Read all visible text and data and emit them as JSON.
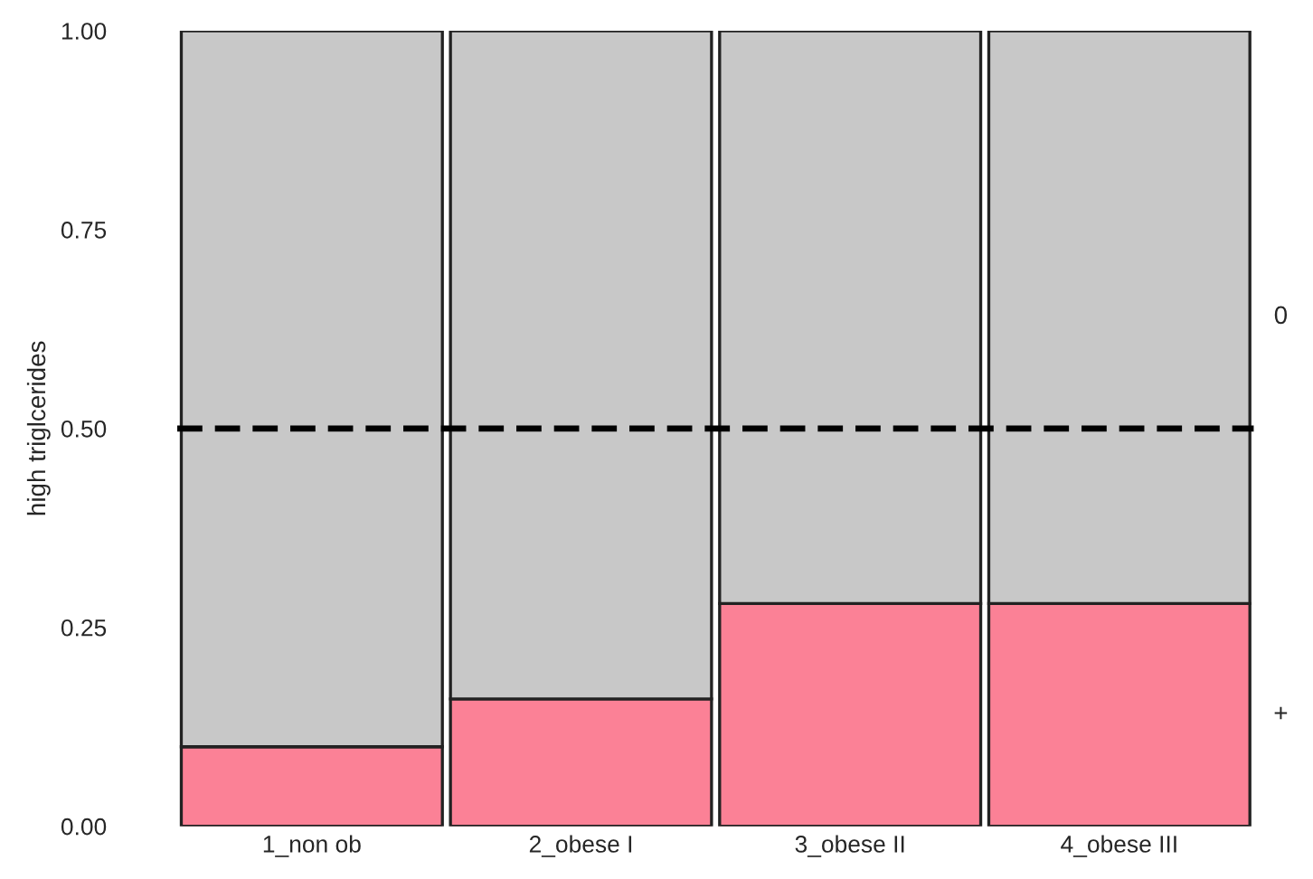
{
  "chart_data": {
    "type": "bar",
    "stacked": true,
    "ylabel": "high triglcerides",
    "categories": [
      "1_non ob",
      "2_obese I",
      "3_obese II",
      "4_obese III"
    ],
    "series": [
      {
        "name": "+",
        "color": "#fb8196",
        "values": [
          0.1,
          0.16,
          0.28,
          0.28
        ]
      },
      {
        "name": "0",
        "color": "#c8c8c8",
        "values": [
          0.9,
          0.84,
          0.72,
          0.72
        ]
      }
    ],
    "ylim": [
      0,
      1
    ],
    "yticks": [
      {
        "value": 0,
        "label": "0.00"
      },
      {
        "value": 0.25,
        "label": "0.25"
      },
      {
        "value": 0.5,
        "label": "0.50"
      },
      {
        "value": 0.75,
        "label": "0.75"
      },
      {
        "value": 1,
        "label": "1.00"
      }
    ],
    "ref_lines": [
      {
        "axis": "y",
        "value": 0.5,
        "line_style": "dashed",
        "color": "#000000"
      }
    ],
    "grid": false,
    "legend": false
  }
}
